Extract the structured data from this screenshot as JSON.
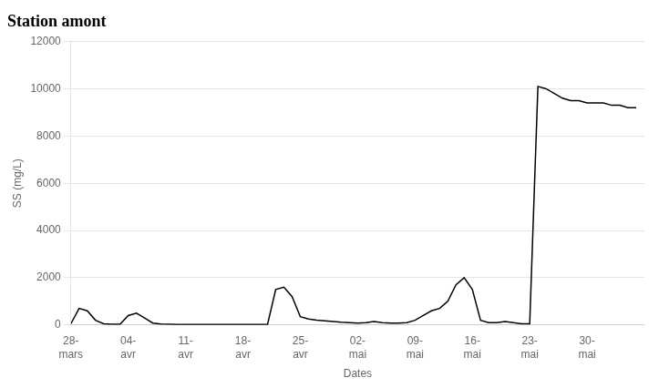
{
  "chart_data": {
    "type": "line",
    "title": "Station amont",
    "xlabel": "Dates",
    "ylabel": "SS (mg/L)",
    "x": [
      0,
      1,
      2,
      3,
      4,
      5,
      6,
      7,
      8,
      9,
      10,
      11,
      12,
      13,
      14,
      15,
      16,
      17,
      18,
      19,
      20,
      21,
      22,
      23,
      24,
      25,
      26,
      27,
      28,
      29,
      30,
      31,
      32,
      33,
      34,
      35,
      36,
      37,
      38,
      39,
      40,
      41,
      42,
      43,
      44,
      45,
      46,
      47,
      48,
      49,
      50,
      51,
      52,
      53,
      54,
      55,
      56,
      57,
      58,
      59,
      60,
      61,
      62,
      63,
      64,
      65,
      66,
      67,
      68,
      69
    ],
    "values": [
      50,
      700,
      600,
      200,
      50,
      30,
      30,
      400,
      500,
      300,
      80,
      40,
      30,
      20,
      20,
      20,
      20,
      20,
      20,
      20,
      20,
      20,
      20,
      20,
      20,
      1500,
      1600,
      1200,
      350,
      250,
      200,
      180,
      150,
      120,
      100,
      80,
      100,
      150,
      100,
      80,
      80,
      100,
      200,
      400,
      600,
      700,
      1000,
      1700,
      2000,
      1500,
      200,
      100,
      100,
      150,
      100,
      50,
      50,
      10100,
      10000,
      9800,
      9600,
      9500,
      9500,
      9400,
      9400,
      9400,
      9300,
      9300,
      9200,
      9200
    ],
    "color": "#000000",
    "xlim": [
      0,
      70
    ],
    "xticks": [
      {
        "value": 0,
        "label": "28-\nmars"
      },
      {
        "value": 7,
        "label": "04-\navr"
      },
      {
        "value": 14,
        "label": "11-\navr"
      },
      {
        "value": 21,
        "label": "18-\navr"
      },
      {
        "value": 28,
        "label": "25-\navr"
      },
      {
        "value": 35,
        "label": "02-\nmai"
      },
      {
        "value": 42,
        "label": "09-\nmai"
      },
      {
        "value": 49,
        "label": "16-\nmai"
      },
      {
        "value": 56,
        "label": "23-\nmai"
      },
      {
        "value": 63,
        "label": "30-\nmai"
      }
    ],
    "ylim": [
      0,
      12000
    ],
    "yticks": [
      0,
      2000,
      4000,
      6000,
      8000,
      10000,
      12000
    ],
    "grid": "y"
  }
}
